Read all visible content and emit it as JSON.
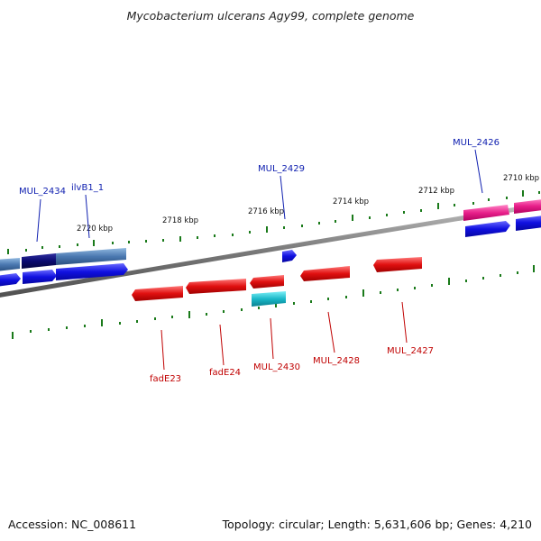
{
  "title": "Mycobacterium ulcerans Agy99, complete genome",
  "footer": {
    "accession": "Accession: NC_008611",
    "topology": "Topology: circular; Length: 5,631,606 bp; Genes: 4,210"
  },
  "scale_labels": [
    "2720 kbp",
    "2718 kbp",
    "2716 kbp",
    "2714 kbp",
    "2712 kbp",
    "2710 kbp"
  ],
  "gene_labels_top": [
    "MUL_2434",
    "ilvB1_1",
    "MUL_2429",
    "MUL_2426"
  ],
  "gene_labels_bottom": [
    "fadE23",
    "fadE24",
    "MUL_2430",
    "MUL_2428",
    "MUL_2427"
  ],
  "colors": {
    "backbone": "#8a8a8a",
    "tick": "#1a7a1a",
    "forward_gene": "#1010e0",
    "reverse_gene": "#e01010",
    "rna": "#1ab8c8",
    "pink": "#e8208a",
    "navy": "#0a0a70",
    "steel": "#4a78b0",
    "label_blue": "#1020b0",
    "label_red": "#c00000"
  }
}
